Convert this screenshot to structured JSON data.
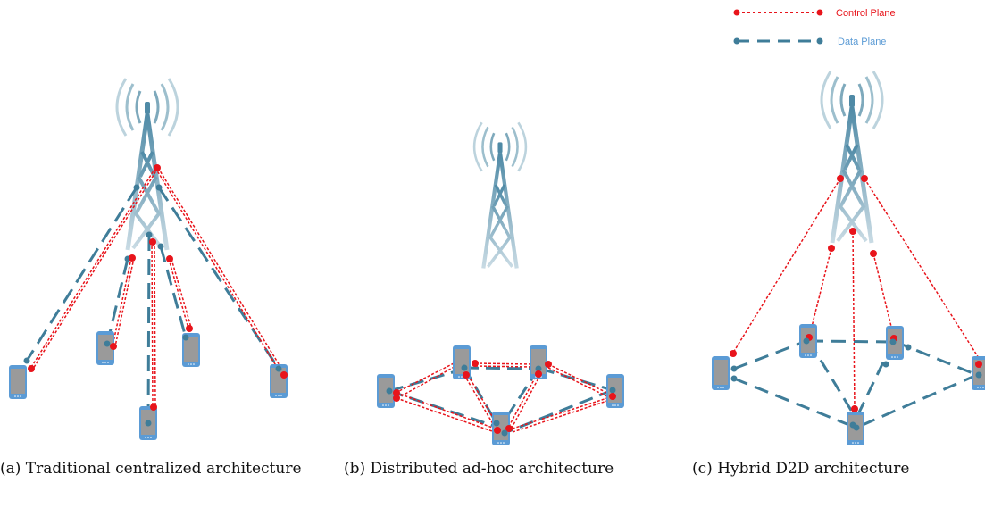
{
  "legend": {
    "control_label": "Control Plane",
    "data_label": "Data Plane"
  },
  "captions": {
    "a": "(a) Traditional centralized architecture",
    "b": "(b) Distributed ad-hoc architecture",
    "c": "(c) Hybrid D2D architecture"
  },
  "colors": {
    "control": "#e8141b",
    "data": "#3f7d99",
    "tower": "#6fa0b6",
    "phone_frame": "#5b9bd5",
    "phone_screen": "#9a9a9a",
    "legend_control_text": "#e8141b",
    "legend_data_text": "#5b9bd5"
  },
  "icons": {
    "tower": "cell-tower-icon",
    "device": "smartphone-icon"
  }
}
